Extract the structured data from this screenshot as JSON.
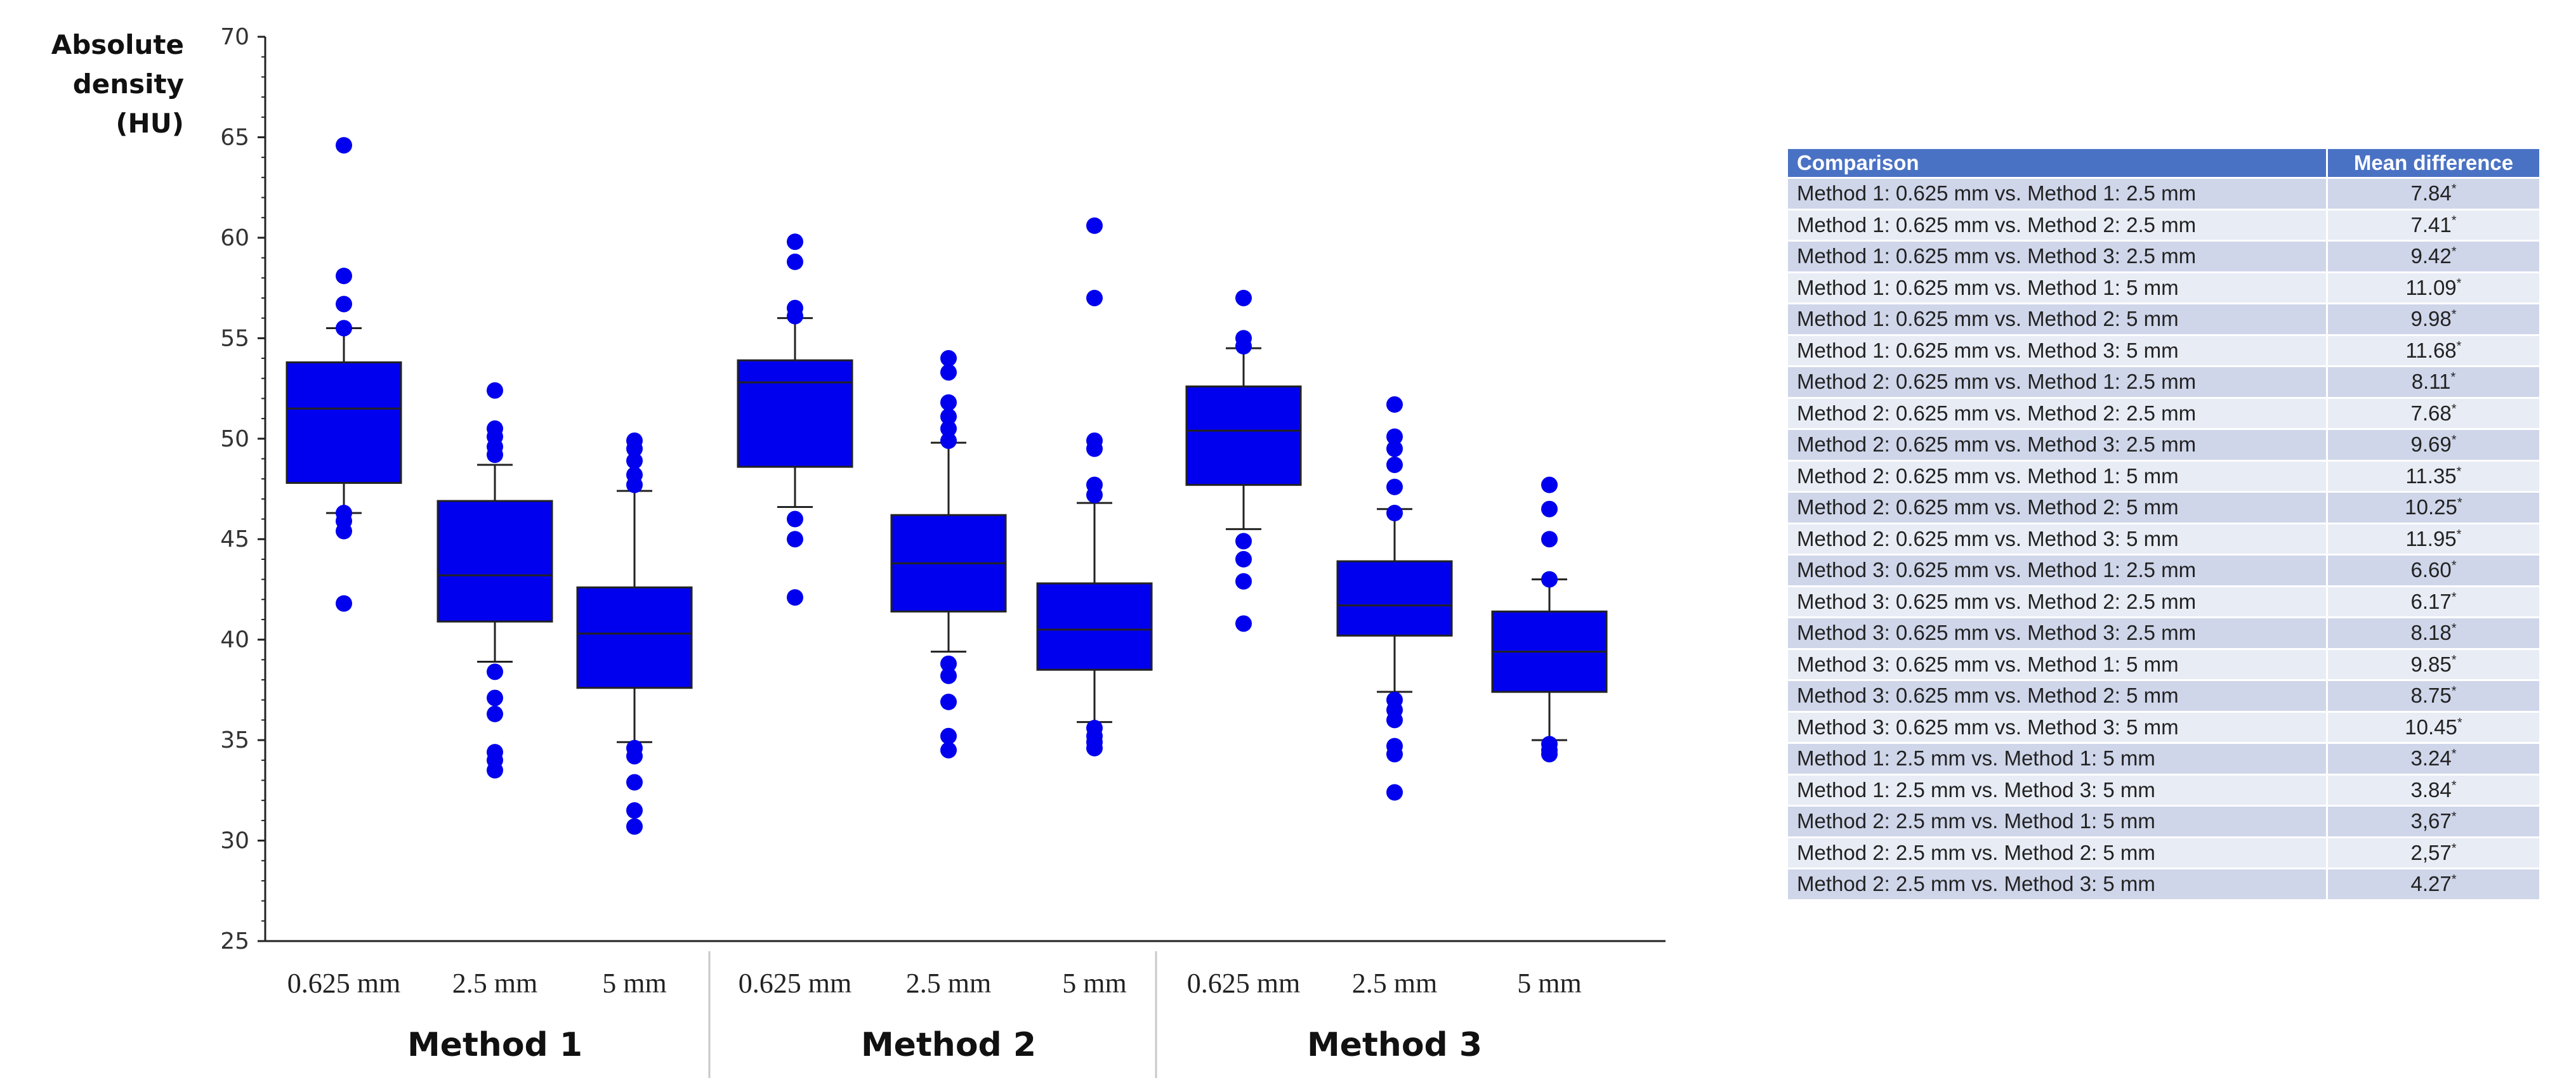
{
  "chart_data": {
    "type": "boxplot",
    "ylabel": "Absolute density (HU)",
    "ylim": [
      25,
      70
    ],
    "yticks": [
      25,
      30,
      35,
      40,
      45,
      50,
      55,
      60,
      65,
      70
    ],
    "groups": [
      "Method 1",
      "Method 2",
      "Method 3"
    ],
    "categories": [
      "0.625 mm",
      "2.5 mm",
      "5 mm"
    ],
    "box_color": "#0000ee",
    "boxes": [
      {
        "group": "Method 1",
        "category": "0.625 mm",
        "whisker_low": 46.3,
        "q1": 47.8,
        "median": 51.5,
        "q3": 53.8,
        "whisker_high": 55.5,
        "outliers": [
          64.6,
          58.1,
          56.7,
          55.5,
          46.3,
          45.9,
          45.4,
          41.8
        ]
      },
      {
        "group": "Method 1",
        "category": "2.5 mm",
        "whisker_low": 38.9,
        "q1": 40.9,
        "median": 43.2,
        "q3": 46.9,
        "whisker_high": 48.7,
        "outliers": [
          52.4,
          50.5,
          50.1,
          49.6,
          49.2,
          38.4,
          37.1,
          36.3,
          34.4,
          34.0,
          33.5
        ]
      },
      {
        "group": "Method 1",
        "category": "5 mm",
        "whisker_low": 34.9,
        "q1": 37.6,
        "median": 40.3,
        "q3": 42.6,
        "whisker_high": 47.4,
        "outliers": [
          49.9,
          49.5,
          48.9,
          48.2,
          47.7,
          34.6,
          34.2,
          32.9,
          31.5,
          30.7
        ]
      },
      {
        "group": "Method 2",
        "category": "0.625 mm",
        "whisker_low": 46.6,
        "q1": 48.6,
        "median": 52.8,
        "q3": 53.9,
        "whisker_high": 56.0,
        "outliers": [
          59.8,
          58.8,
          56.5,
          56.1,
          46.0,
          45.0,
          42.1
        ]
      },
      {
        "group": "Method 2",
        "category": "2.5 mm",
        "whisker_low": 39.4,
        "q1": 41.4,
        "median": 43.8,
        "q3": 46.2,
        "whisker_high": 49.8,
        "outliers": [
          54.0,
          53.3,
          51.8,
          51.1,
          50.5,
          49.9,
          38.8,
          38.2,
          36.9,
          35.2,
          34.5
        ]
      },
      {
        "group": "Method 2",
        "category": "5 mm",
        "whisker_low": 35.9,
        "q1": 38.5,
        "median": 40.5,
        "q3": 42.8,
        "whisker_high": 46.8,
        "outliers": [
          60.6,
          57.0,
          49.9,
          49.5,
          47.7,
          47.2,
          35.6,
          35.2,
          34.9,
          34.6
        ]
      },
      {
        "group": "Method 3",
        "category": "0.625 mm",
        "whisker_low": 45.5,
        "q1": 47.7,
        "median": 50.4,
        "q3": 52.6,
        "whisker_high": 54.5,
        "outliers": [
          57.0,
          55.0,
          54.6,
          44.9,
          44.0,
          42.9,
          40.8
        ]
      },
      {
        "group": "Method 3",
        "category": "2.5 mm",
        "whisker_low": 37.4,
        "q1": 40.2,
        "median": 41.7,
        "q3": 43.9,
        "whisker_high": 46.5,
        "outliers": [
          51.7,
          50.1,
          49.5,
          48.7,
          47.6,
          46.3,
          37.0,
          36.5,
          36.0,
          34.7,
          34.3,
          32.4
        ]
      },
      {
        "group": "Method 3",
        "category": "5 mm",
        "whisker_low": 35.0,
        "q1": 37.4,
        "median": 39.4,
        "q3": 41.4,
        "whisker_high": 43.0,
        "outliers": [
          47.7,
          46.5,
          45.0,
          43.0,
          34.8,
          34.5,
          34.3
        ]
      }
    ]
  },
  "table": {
    "headers": {
      "comparison": "Comparison",
      "mean_difference": "Mean difference"
    },
    "rows": [
      {
        "comparison": "Method 1: 0.625 mm vs. Method 1: 2.5 mm",
        "value": "7.84",
        "mark": "*"
      },
      {
        "comparison": "Method 1: 0.625 mm vs. Method 2: 2.5 mm",
        "value": "7.41",
        "mark": "*"
      },
      {
        "comparison": "Method 1: 0.625 mm vs. Method 3: 2.5 mm",
        "value": "9.42",
        "mark": "*"
      },
      {
        "comparison": "Method 1: 0.625 mm vs. Method 1: 5 mm",
        "value": "11.09",
        "mark": "*"
      },
      {
        "comparison": "Method 1: 0.625 mm vs. Method 2: 5 mm",
        "value": "9.98",
        "mark": "*"
      },
      {
        "comparison": "Method 1: 0.625 mm vs. Method 3: 5 mm",
        "value": "11.68",
        "mark": "*"
      },
      {
        "comparison": "Method 2: 0.625 mm vs. Method 1: 2.5 mm",
        "value": "8.11",
        "mark": "*"
      },
      {
        "comparison": "Method 2: 0.625 mm vs. Method 2: 2.5 mm",
        "value": "7.68",
        "mark": "*"
      },
      {
        "comparison": "Method 2: 0.625 mm vs. Method 3: 2.5 mm",
        "value": "9.69",
        "mark": "*"
      },
      {
        "comparison": "Method 2: 0.625 mm vs. Method 1: 5 mm",
        "value": "11.35",
        "mark": "*"
      },
      {
        "comparison": "Method 2: 0.625 mm vs. Method 2: 5 mm",
        "value": "10.25",
        "mark": "*"
      },
      {
        "comparison": "Method 2: 0.625 mm vs. Method 3: 5 mm",
        "value": "11.95",
        "mark": "*"
      },
      {
        "comparison": "Method 3: 0.625 mm vs. Method 1: 2.5 mm",
        "value": "6.60",
        "mark": "*"
      },
      {
        "comparison": "Method 3: 0.625 mm vs. Method 2: 2.5 mm",
        "value": "6.17",
        "mark": "*"
      },
      {
        "comparison": "Method 3: 0.625 mm vs. Method 3: 2.5 mm",
        "value": "8.18",
        "mark": "*"
      },
      {
        "comparison": "Method 3: 0.625 mm vs. Method 1: 5 mm",
        "value": "9.85",
        "mark": "*"
      },
      {
        "comparison": "Method 3: 0.625 mm vs. Method 2: 5 mm",
        "value": "8.75",
        "mark": "*"
      },
      {
        "comparison": "Method 3: 0.625 mm vs. Method 3: 5 mm",
        "value": "10.45",
        "mark": "*"
      },
      {
        "comparison": "Method 1: 2.5 mm vs. Method 1: 5 mm",
        "value": "3.24",
        "mark": "*"
      },
      {
        "comparison": "Method 1: 2.5 mm vs. Method 3: 5 mm",
        "value": "3.84",
        "mark": "*"
      },
      {
        "comparison": "Method 2: 2.5 mm vs. Method 1: 5 mm",
        "value": "3,67",
        "mark": "*"
      },
      {
        "comparison": "Method 2: 2.5 mm vs. Method 2: 5 mm",
        "value": "2,57",
        "mark": "*"
      },
      {
        "comparison": "Method 2: 2.5 mm vs. Method 3: 5 mm",
        "value": "4.27",
        "mark": "*"
      }
    ]
  }
}
